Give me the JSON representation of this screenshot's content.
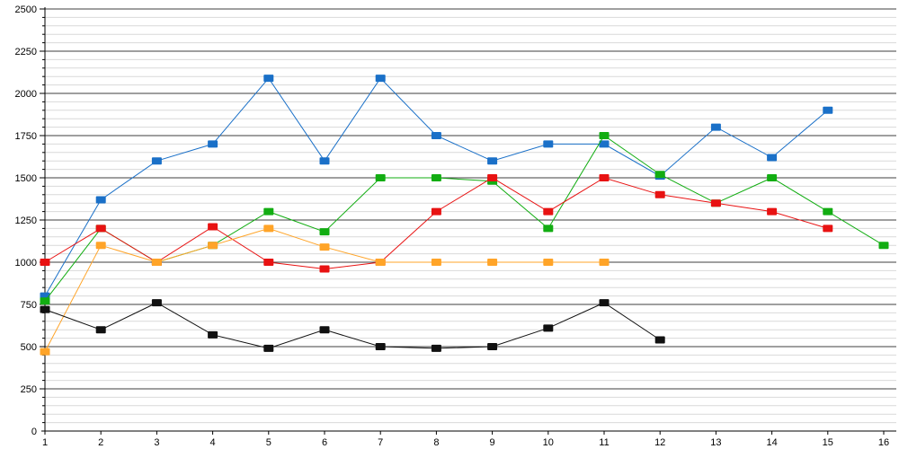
{
  "chart_data": {
    "type": "line",
    "title": "",
    "xlabel": "",
    "ylabel": "",
    "legend_position": "none",
    "grid": true,
    "marker_shape": "square",
    "ylim": [
      0,
      2500
    ],
    "y_major_step": 250,
    "y_minor_step": 50,
    "x": [
      1,
      2,
      3,
      4,
      5,
      6,
      7,
      8,
      9,
      10,
      11,
      12,
      13,
      14,
      15,
      16
    ],
    "x_tick_labels": [
      "1",
      "2",
      "3",
      "4",
      "5",
      "6",
      "7",
      "8",
      "9",
      "10",
      "11",
      "12",
      "13",
      "14",
      "15",
      "16"
    ],
    "y_ticks": [
      0,
      250,
      500,
      750,
      1000,
      1250,
      1500,
      1750,
      2000,
      2250,
      2500
    ],
    "y_tick_labels": [
      "0",
      "250",
      "500",
      "750",
      "1000",
      "1250",
      "1500",
      "1750",
      "2000",
      "2250",
      "2500"
    ],
    "series": [
      {
        "name": "series-blue",
        "color": "#1a70c8",
        "values": [
          800,
          1370,
          1600,
          1700,
          2090,
          1600,
          2090,
          1750,
          1600,
          1700,
          1700,
          1510,
          1800,
          1620,
          1900,
          null
        ]
      },
      {
        "name": "series-green",
        "color": "#12ad12",
        "values": [
          770,
          1200,
          1000,
          1100,
          1300,
          1180,
          1500,
          1500,
          1480,
          1200,
          1750,
          1520,
          1350,
          1500,
          1300,
          1100
        ]
      },
      {
        "name": "series-red",
        "color": "#e81212",
        "values": [
          1000,
          1200,
          1000,
          1210,
          1000,
          960,
          1000,
          1300,
          1500,
          1300,
          1500,
          1400,
          1350,
          1300,
          1200,
          null
        ]
      },
      {
        "name": "series-orange",
        "color": "#ffa428",
        "values": [
          470,
          1100,
          1000,
          1100,
          1200,
          1090,
          1000,
          1000,
          1000,
          1000,
          1000,
          null,
          null,
          null,
          null,
          null
        ]
      },
      {
        "name": "series-black",
        "color": "#111111",
        "values": [
          720,
          600,
          760,
          570,
          490,
          600,
          500,
          490,
          500,
          610,
          760,
          540,
          null,
          null,
          null,
          null
        ]
      }
    ],
    "style": {
      "axis_color": "#000000",
      "major_grid_color": "#3f3f3f",
      "minor_grid_color": "#d9d9d9",
      "background": "#ffffff"
    }
  }
}
